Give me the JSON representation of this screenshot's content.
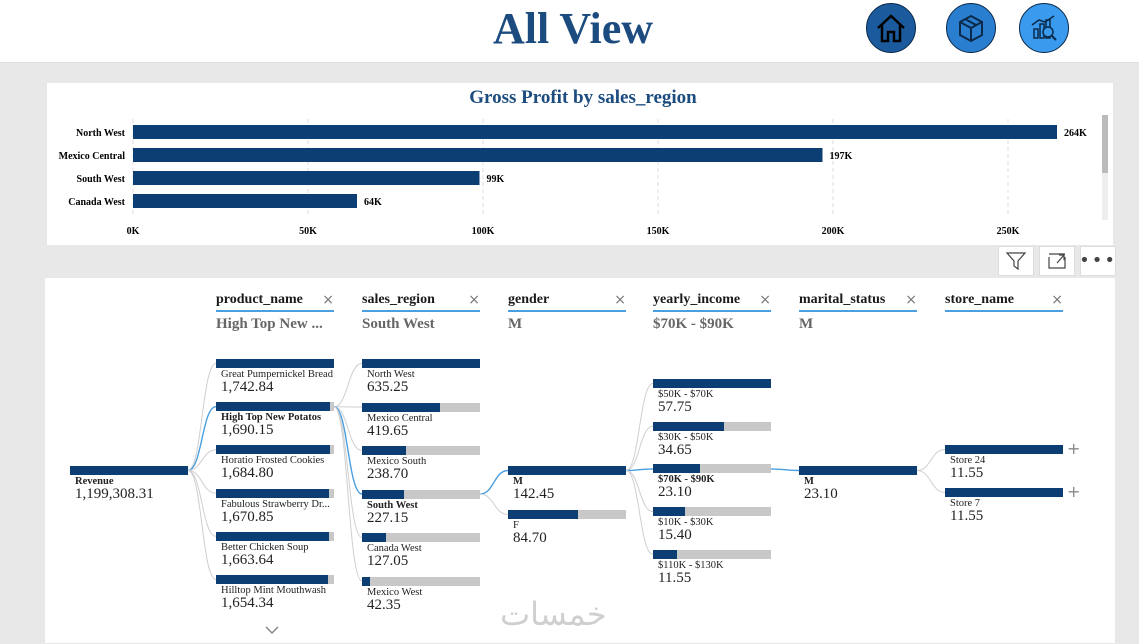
{
  "header": {
    "title": "All View"
  },
  "nav": {
    "buttons": [
      {
        "name": "home-button",
        "icon": "home-icon"
      },
      {
        "name": "product-button",
        "icon": "box-icon"
      },
      {
        "name": "analytics-button",
        "icon": "analytics-icon"
      }
    ]
  },
  "bar_chart": {
    "chart_data": {
      "type": "bar",
      "orientation": "horizontal",
      "title": "Gross Profit by sales_region",
      "categories": [
        "North West",
        "Mexico Central",
        "South West",
        "Canada West"
      ],
      "values": [
        264000,
        197000,
        99000,
        64000
      ],
      "data_labels": [
        "264K",
        "197K",
        "99K",
        "64K"
      ],
      "x_ticks": [
        "0K",
        "50K",
        "100K",
        "150K",
        "200K",
        "250K"
      ],
      "xlim": [
        0,
        270000
      ],
      "grid": true,
      "bar_color": "#0d3e73"
    }
  },
  "decomp": {
    "root": {
      "label": "Revenue",
      "value": "1,199,308.31"
    },
    "columns": [
      {
        "name": "product_name",
        "selected": "High Top New ..."
      },
      {
        "name": "sales_region",
        "selected": "South West"
      },
      {
        "name": "gender",
        "selected": "M"
      },
      {
        "name": "yearly_income",
        "selected": "$70K - $90K"
      },
      {
        "name": "marital_status",
        "selected": "M"
      },
      {
        "name": "store_name",
        "selected": ""
      }
    ],
    "levels": [
      [
        {
          "label": "Great Pumpernickel Bread",
          "value": "1,742.84",
          "fill": 1.0
        },
        {
          "label": "High Top New Potatos",
          "value": "1,690.15",
          "fill": 0.97,
          "selected": true
        },
        {
          "label": "Horatio Frosted Cookies",
          "value": "1,684.80",
          "fill": 0.967
        },
        {
          "label": "Fabulous Strawberry Dr...",
          "value": "1,670.85",
          "fill": 0.959
        },
        {
          "label": "Better Chicken Soup",
          "value": "1,663.64",
          "fill": 0.955
        },
        {
          "label": "Hilltop Mint Mouthwash",
          "value": "1,654.34",
          "fill": 0.949
        }
      ],
      [
        {
          "label": "North West",
          "value": "635.25",
          "fill": 1.0
        },
        {
          "label": "Mexico Central",
          "value": "419.65",
          "fill": 0.66
        },
        {
          "label": "Mexico South",
          "value": "238.70",
          "fill": 0.376
        },
        {
          "label": "South West",
          "value": "227.15",
          "fill": 0.358,
          "selected": true
        },
        {
          "label": "Canada West",
          "value": "127.05",
          "fill": 0.2
        },
        {
          "label": "Mexico West",
          "value": "42.35",
          "fill": 0.067
        }
      ],
      [
        {
          "label": "M",
          "value": "142.45",
          "fill": 1.0,
          "selected": true
        },
        {
          "label": "F",
          "value": "84.70",
          "fill": 0.595
        }
      ],
      [
        {
          "label": "$50K - $70K",
          "value": "57.75",
          "fill": 1.0
        },
        {
          "label": "$30K - $50K",
          "value": "34.65",
          "fill": 0.6
        },
        {
          "label": "$70K - $90K",
          "value": "23.10",
          "fill": 0.4,
          "selected": true
        },
        {
          "label": "$10K - $30K",
          "value": "15.40",
          "fill": 0.267
        },
        {
          "label": "$110K - $130K",
          "value": "11.55",
          "fill": 0.2
        }
      ],
      [
        {
          "label": "M",
          "value": "23.10",
          "fill": 1.0,
          "selected": true
        }
      ],
      [
        {
          "label": "Store 24",
          "value": "11.55",
          "fill": 1.0
        },
        {
          "label": "Store 7",
          "value": "11.55",
          "fill": 1.0
        }
      ]
    ]
  },
  "watermark": "خمسات",
  "colors": {
    "brand": "#1b4b7f",
    "bar": "#0d3e73",
    "track": "#c8c8c8",
    "link": "#4a9fe0"
  }
}
